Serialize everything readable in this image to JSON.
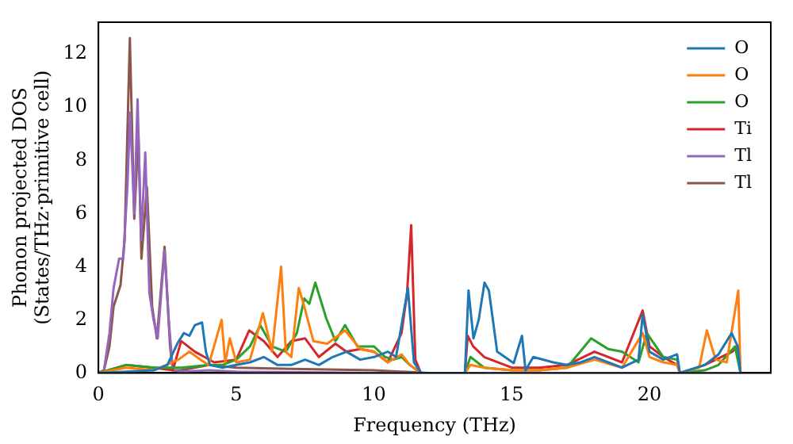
{
  "chart_data": {
    "type": "line",
    "xlabel": "Frequency (THz)",
    "ylabel": "Phonon projected DOS\n(States/THz·primitive cell)",
    "xlim": [
      0,
      24.4
    ],
    "ylim": [
      0,
      13.2
    ],
    "xticks": [
      0,
      5,
      10,
      15,
      20
    ],
    "yticks": [
      0,
      2,
      4,
      6,
      8,
      10,
      12
    ],
    "grid": false,
    "legend": "top right",
    "marker": "none",
    "line_style": "solid",
    "series": [
      {
        "name": "O",
        "color": "#1f77b4",
        "x": [
          0,
          1,
          2,
          2.5,
          2.86,
          3.1,
          3.3,
          3.5,
          3.76,
          3.9,
          4.05,
          4.5,
          5,
          5.5,
          6,
          6.5,
          7,
          7.5,
          8,
          8.5,
          9,
          9.5,
          10,
          10.5,
          10.8,
          11.23,
          11.45,
          11.7,
          13.3,
          13.43,
          13.61,
          13.8,
          14.01,
          14.17,
          14.47,
          15.07,
          15.37,
          15.5,
          15.78,
          16.5,
          17,
          17.5,
          18,
          18.5,
          19,
          19.6,
          19.75,
          20,
          20.5,
          21,
          21.1,
          22,
          22.5,
          22.98,
          23.2,
          23.3
        ],
        "values": [
          0,
          0.05,
          0.1,
          0.3,
          1.1,
          1.5,
          1.4,
          1.8,
          1.9,
          0.8,
          0.3,
          0.2,
          0.3,
          0.4,
          0.6,
          0.3,
          0.3,
          0.5,
          0.3,
          0.6,
          0.8,
          0.5,
          0.6,
          0.8,
          0.6,
          3.2,
          0.4,
          0,
          0,
          3.1,
          1.3,
          2.0,
          3.4,
          3.1,
          0.8,
          0.37,
          1.4,
          0.1,
          0.6,
          0.4,
          0.3,
          0.4,
          0.6,
          0.4,
          0.2,
          0.5,
          2.2,
          0.8,
          0.5,
          0.7,
          0,
          0.3,
          0.7,
          1.5,
          1.0,
          0
        ]
      },
      {
        "name": "O",
        "color": "#ff7f0e",
        "x": [
          0,
          1,
          2,
          2.9,
          3.3,
          3.7,
          4.0,
          4.47,
          4.6,
          4.77,
          5,
          5.5,
          5.97,
          6.3,
          6.63,
          6.8,
          7.0,
          7.27,
          7.47,
          7.8,
          8.3,
          8.95,
          9.5,
          10,
          10.5,
          11,
          11.3,
          11.7,
          13.3,
          13.5,
          14,
          15,
          16,
          17,
          18,
          19,
          19.75,
          20,
          20.5,
          21,
          21.1,
          21.8,
          22.08,
          22.4,
          22.8,
          23.22,
          23.3
        ],
        "values": [
          0,
          0.2,
          0.1,
          0.5,
          0.8,
          0.5,
          0.3,
          2.0,
          0.4,
          1.3,
          0.4,
          0.5,
          2.25,
          0.8,
          4.0,
          0.8,
          0.6,
          3.2,
          2.5,
          1.2,
          1.1,
          1.6,
          0.9,
          0.8,
          0.4,
          0.7,
          0.3,
          0,
          0,
          0.3,
          0.2,
          0.1,
          0.1,
          0.2,
          0.5,
          0.2,
          1.5,
          0.6,
          0.4,
          0.3,
          0,
          0.2,
          1.6,
          0.5,
          0.4,
          3.1,
          0
        ]
      },
      {
        "name": "O",
        "color": "#2ca02c",
        "x": [
          0,
          1,
          2,
          3,
          4,
          4.5,
          5,
          5.5,
          5.87,
          6.3,
          6.8,
          7.2,
          7.47,
          7.65,
          7.87,
          8.27,
          8.6,
          8.95,
          9.4,
          10,
          10.4,
          10.7,
          11,
          11.3,
          11.7,
          13.3,
          13.5,
          14,
          15,
          16,
          17,
          17.88,
          18.5,
          19,
          19.6,
          19.9,
          20.5,
          21,
          21.1,
          22,
          22.5,
          23.1,
          23.3
        ],
        "values": [
          0,
          0.3,
          0.2,
          0.2,
          0.3,
          0.3,
          0.5,
          1.0,
          1.8,
          1.0,
          0.8,
          1.5,
          2.8,
          2.6,
          3.4,
          2.05,
          1.2,
          1.8,
          1.0,
          1.0,
          0.6,
          0.5,
          0.6,
          0.3,
          0,
          0,
          0.6,
          0.2,
          0.1,
          0.1,
          0.2,
          1.3,
          0.9,
          0.8,
          0.4,
          1.5,
          0.6,
          0.5,
          0,
          0.1,
          0.3,
          1.0,
          0
        ]
      },
      {
        "name": "Ti",
        "color": "#d62728",
        "x": [
          0,
          1,
          2,
          2.7,
          3,
          3.5,
          4.2,
          5,
          5.47,
          6,
          6.5,
          7,
          7.5,
          8,
          8.6,
          9,
          9.5,
          10,
          10.5,
          11,
          11.2,
          11.35,
          11.5,
          11.7,
          13.3,
          13.4,
          13.6,
          14,
          15,
          16,
          17,
          18,
          19,
          19.75,
          20,
          20.5,
          21,
          21.1,
          22,
          23,
          23.2,
          23.3
        ],
        "values": [
          0,
          0.3,
          0.2,
          0.1,
          1.2,
          0.8,
          0.4,
          0.5,
          1.6,
          1.2,
          0.6,
          1.2,
          1.3,
          0.6,
          1.1,
          0.8,
          0.9,
          0.8,
          0.4,
          1.5,
          3.0,
          5.56,
          0.5,
          0,
          0,
          1.4,
          1.0,
          0.6,
          0.2,
          0.2,
          0.3,
          0.8,
          0.4,
          2.35,
          1.0,
          0.6,
          0.3,
          0,
          0.3,
          0.8,
          1.0,
          0
        ]
      },
      {
        "name": "Tl",
        "color": "#9467bd",
        "x": [
          0,
          0.2,
          0.4,
          0.55,
          0.75,
          0.9,
          1.05,
          1.15,
          1.3,
          1.42,
          1.55,
          1.7,
          1.85,
          2.0,
          2.15,
          2.4,
          2.55,
          2.7,
          3,
          4,
          5,
          8,
          10,
          12,
          16,
          20,
          23.3
        ],
        "values": [
          0,
          0.1,
          1.5,
          3.2,
          4.3,
          4.3,
          7.0,
          9.8,
          6.0,
          10.3,
          5.0,
          8.3,
          3.0,
          2.0,
          1.3,
          4.6,
          2.0,
          0.1,
          0.05,
          0.1,
          0.05,
          0.02,
          0,
          0,
          0,
          0,
          0
        ]
      },
      {
        "name": "Tl",
        "color": "#8c564b",
        "x": [
          0,
          0.2,
          0.4,
          0.55,
          0.8,
          0.95,
          1.14,
          1.3,
          1.45,
          1.56,
          1.76,
          1.95,
          2.12,
          2.4,
          2.6,
          2.7,
          3,
          4,
          5,
          7,
          10,
          12,
          16,
          20,
          23.3
        ],
        "values": [
          0,
          0.1,
          1.0,
          2.5,
          3.3,
          5.0,
          12.6,
          5.8,
          9.0,
          4.3,
          7.0,
          2.5,
          1.3,
          4.75,
          1.0,
          0.1,
          0.1,
          0.3,
          0.2,
          0.15,
          0.1,
          0,
          0,
          0,
          0
        ]
      }
    ]
  }
}
